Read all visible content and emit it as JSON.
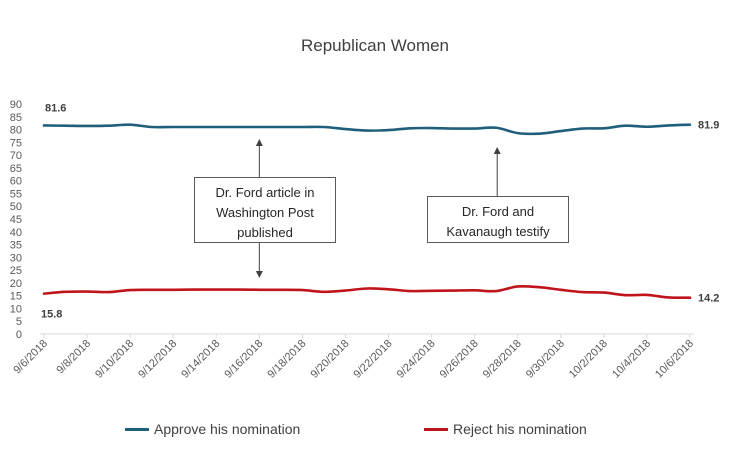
{
  "chart_data": {
    "type": "line",
    "title": "Republican Women",
    "categories": [
      "9/6/2018",
      "9/7/2018",
      "9/8/2018",
      "9/9/2018",
      "9/10/2018",
      "9/11/2018",
      "9/12/2018",
      "9/13/2018",
      "9/14/2018",
      "9/15/2018",
      "9/16/2018",
      "9/17/2018",
      "9/18/2018",
      "9/19/2018",
      "9/20/2018",
      "9/21/2018",
      "9/22/2018",
      "9/23/2018",
      "9/24/2018",
      "9/25/2018",
      "9/26/2018",
      "9/27/2018",
      "9/28/2018",
      "9/29/2018",
      "9/30/2018",
      "10/1/2018",
      "10/2/2018",
      "10/3/2018",
      "10/4/2018",
      "10/5/2018",
      "10/6/2018"
    ],
    "x_tick_labels": [
      "9/6/2018",
      "9/8/2018",
      "9/10/2018",
      "9/12/2018",
      "9/14/2018",
      "9/16/2018",
      "9/18/2018",
      "9/20/2018",
      "9/22/2018",
      "9/24/2018",
      "9/26/2018",
      "9/28/2018",
      "9/30/2018",
      "10/2/2018",
      "10/4/2018",
      "10/6/2018"
    ],
    "y_ticks": [
      0,
      5,
      10,
      15,
      20,
      25,
      30,
      35,
      40,
      45,
      50,
      55,
      60,
      65,
      70,
      75,
      80,
      85,
      90
    ],
    "ylim": [
      0,
      90
    ],
    "grid": false,
    "legend_position": "bottom",
    "series": [
      {
        "name": "Approve his nomination",
        "color": "#1f5f7a",
        "values": [
          81.6,
          81.5,
          81.4,
          81.5,
          81.9,
          81.0,
          81.0,
          81.0,
          81.0,
          81.0,
          81.0,
          81.0,
          81.0,
          81.0,
          80.2,
          79.6,
          79.8,
          80.5,
          80.6,
          80.4,
          80.4,
          80.7,
          78.6,
          78.4,
          79.4,
          80.4,
          80.5,
          81.5,
          81.1,
          81.6,
          81.9
        ],
        "start_label": "81.6",
        "end_label": "81.9"
      },
      {
        "name": "Reject his nomination",
        "color": "#c0141c",
        "values": [
          15.8,
          16.5,
          16.6,
          16.4,
          17.2,
          17.3,
          17.3,
          17.4,
          17.4,
          17.4,
          17.3,
          17.3,
          17.2,
          16.5,
          17.0,
          17.8,
          17.5,
          16.8,
          16.9,
          17.0,
          17.1,
          16.8,
          18.6,
          18.3,
          17.3,
          16.4,
          16.2,
          15.2,
          15.3,
          14.3,
          14.2
        ],
        "start_label": "15.8",
        "end_label": "14.2"
      }
    ],
    "annotations": [
      {
        "text_lines": [
          "Dr. Ford article in",
          "Washington Post",
          "published"
        ],
        "x": "9/16/2018"
      },
      {
        "text_lines": [
          "Dr. Ford and",
          "Kavanaugh testify"
        ],
        "x": "9/27/2018"
      }
    ]
  }
}
